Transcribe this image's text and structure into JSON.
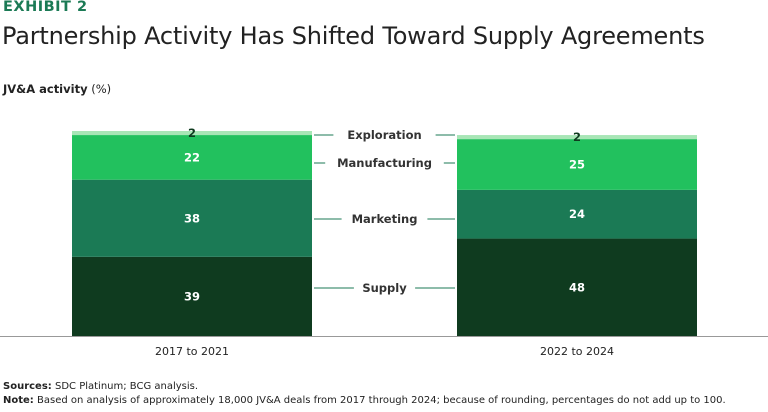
{
  "header": {
    "exhibit": "EXHIBIT 2",
    "title": "Partnership Activity Has Shifted Toward Supply Agreements",
    "subtitle_bold": "JV&A activity",
    "subtitle_unit": "(%)"
  },
  "footer": {
    "sources_label": "Sources:",
    "sources_text": "SDC Platinum; BCG analysis.",
    "note_label": "Note:",
    "note_text": "Based on analysis of approximately 18,000 JV&A deals from 2017 through 2024; because of rounding, percentages do not add up to 100."
  },
  "colors": {
    "Supply": "#0f3b1f",
    "Marketing": "#1b7a55",
    "Manufacturing": "#22c15e",
    "Exploration": "#a8e6b6",
    "exhibit": "#1b7a55"
  },
  "chart_data": {
    "type": "bar",
    "stacked": true,
    "title": "Partnership Activity Has Shifted Toward Supply Agreements",
    "ylabel": "JV&A activity (%)",
    "categories": [
      "2017 to 2021",
      "2022 to 2024"
    ],
    "series": [
      {
        "name": "Supply",
        "values": [
          39,
          48
        ]
      },
      {
        "name": "Marketing",
        "values": [
          38,
          24
        ]
      },
      {
        "name": "Manufacturing",
        "values": [
          22,
          25
        ]
      },
      {
        "name": "Exploration",
        "values": [
          2,
          2
        ]
      }
    ],
    "legend": "center-between-bars"
  }
}
